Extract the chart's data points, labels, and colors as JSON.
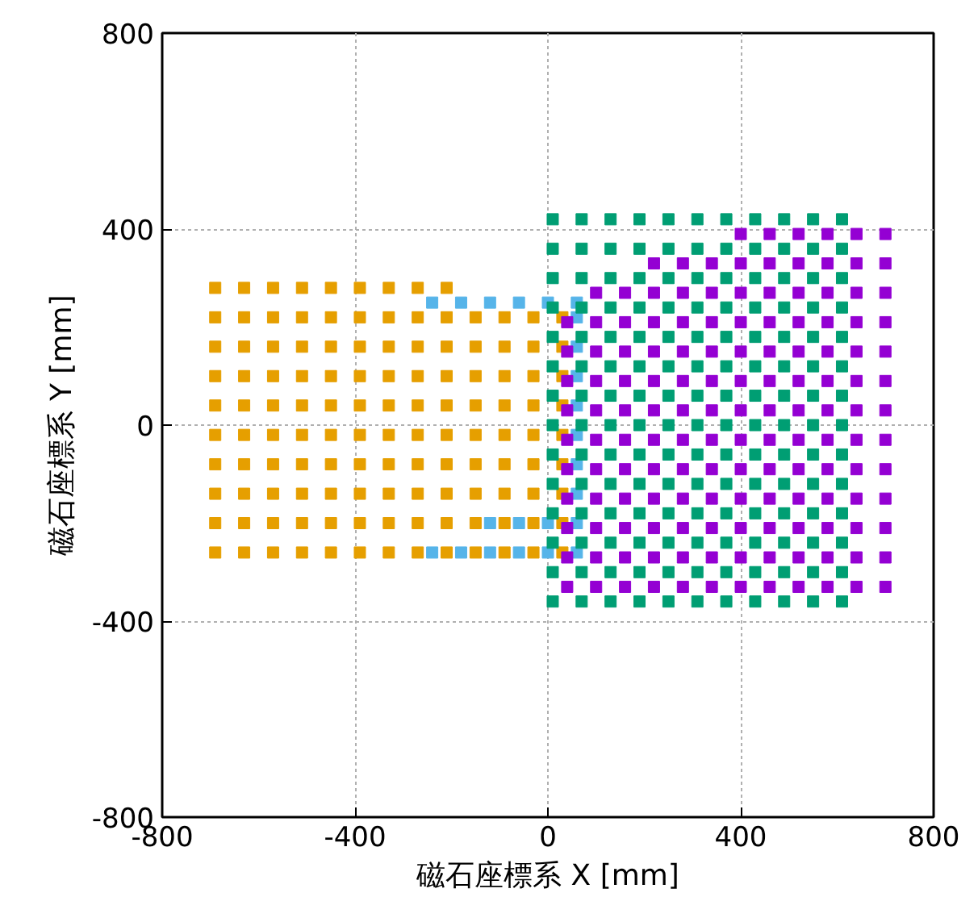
{
  "chart_data": {
    "type": "scatter",
    "xlabel": "磁石座標系 X [mm]",
    "ylabel": "磁石座標系 Y [mm]",
    "xlim": [
      -800,
      800
    ],
    "ylim": [
      -800,
      800
    ],
    "xticks": [
      -800,
      -400,
      0,
      400,
      800
    ],
    "yticks": [
      -800,
      -400,
      0,
      400,
      800
    ],
    "grid": true,
    "marker": "square",
    "series": [
      {
        "color": "#56b4e9",
        "x": [
          -240,
          -180,
          -120,
          -60,
          0,
          60,
          -120,
          -60,
          0,
          60,
          -240,
          -180,
          -120,
          -60,
          0,
          60,
          60,
          60,
          60,
          60,
          60,
          60,
          60
        ],
        "values": [
          250,
          250,
          250,
          250,
          250,
          250,
          -200,
          -200,
          -200,
          -200,
          -260,
          -260,
          -260,
          -260,
          -260,
          -260,
          -140,
          -80,
          -20,
          40,
          100,
          160,
          220
        ]
      },
      {
        "color": "#e69f00",
        "x": [
          -690,
          -630,
          -570,
          -510,
          -450,
          -390,
          -330,
          -270,
          -210,
          -150,
          -90,
          -30,
          30,
          -690,
          -630,
          -570,
          -510,
          -450,
          -390,
          -330,
          -270,
          -210,
          -150,
          -90,
          -30,
          30,
          -690,
          -630,
          -570,
          -510,
          -450,
          -390,
          -330,
          -270,
          -210,
          -150,
          -90,
          -30,
          30,
          -690,
          -630,
          -570,
          -510,
          -450,
          -390,
          -330,
          -270,
          -210,
          -150,
          -90,
          -30,
          30,
          -690,
          -630,
          -570,
          -510,
          -450,
          -390,
          -330,
          -270,
          -210,
          -150,
          -90,
          -30,
          30,
          -690,
          -630,
          -570,
          -510,
          -450,
          -390,
          -330,
          -270,
          -210,
          -150,
          -90,
          -30,
          30,
          -690,
          -630,
          -570,
          -510,
          -450,
          -390,
          -330,
          -270,
          -210,
          -150,
          -90,
          -30,
          30,
          -690,
          -630,
          -570,
          -510,
          -450,
          -390,
          -330,
          -270,
          -210,
          -150,
          -90,
          -30,
          30,
          -690,
          -630,
          -570,
          -510,
          -450,
          -390,
          -330,
          -270,
          -210,
          -150,
          -90,
          -30,
          30,
          -690,
          -630,
          -570,
          -510,
          -450,
          -390,
          -330,
          -270,
          -210
        ],
        "values": [
          -260,
          -260,
          -260,
          -260,
          -260,
          -260,
          -260,
          -260,
          -260,
          -260,
          -260,
          -260,
          -260,
          -200,
          -200,
          -200,
          -200,
          -200,
          -200,
          -200,
          -200,
          -200,
          -200,
          -200,
          -200,
          -200,
          -140,
          -140,
          -140,
          -140,
          -140,
          -140,
          -140,
          -140,
          -140,
          -140,
          -140,
          -140,
          -140,
          -80,
          -80,
          -80,
          -80,
          -80,
          -80,
          -80,
          -80,
          -80,
          -80,
          -80,
          -80,
          -80,
          -20,
          -20,
          -20,
          -20,
          -20,
          -20,
          -20,
          -20,
          -20,
          -20,
          -20,
          -20,
          -20,
          40,
          40,
          40,
          40,
          40,
          40,
          40,
          40,
          40,
          40,
          40,
          40,
          40,
          100,
          100,
          100,
          100,
          100,
          100,
          100,
          100,
          100,
          100,
          100,
          100,
          100,
          160,
          160,
          160,
          160,
          160,
          160,
          160,
          160,
          160,
          160,
          160,
          160,
          160,
          220,
          220,
          220,
          220,
          220,
          220,
          220,
          220,
          220,
          220,
          220,
          220,
          220,
          280,
          280,
          280,
          280,
          280,
          280,
          280,
          280,
          280
        ]
      },
      {
        "color": "#9400d3",
        "x": [
          400,
          460,
          520,
          580,
          640,
          700,
          220,
          280,
          340,
          400,
          460,
          520,
          580,
          640,
          700,
          100,
          160,
          220,
          280,
          340,
          400,
          460,
          520,
          580,
          640,
          700,
          40,
          100,
          160,
          220,
          280,
          340,
          400,
          460,
          520,
          580,
          640,
          700,
          40,
          100,
          160,
          220,
          280,
          340,
          400,
          460,
          520,
          580,
          640,
          700,
          40,
          100,
          160,
          220,
          280,
          340,
          400,
          460,
          520,
          580,
          640,
          700,
          40,
          100,
          160,
          220,
          280,
          340,
          400,
          460,
          520,
          580,
          640,
          700,
          40,
          100,
          160,
          220,
          280,
          340,
          400,
          460,
          520,
          580,
          640,
          700,
          40,
          100,
          160,
          220,
          280,
          340,
          400,
          460,
          520,
          580,
          640,
          700,
          40,
          100,
          160,
          220,
          280,
          340,
          400,
          460,
          520,
          580,
          640,
          700,
          40,
          100,
          160,
          220,
          280,
          340,
          400,
          460,
          520,
          580,
          640,
          700,
          40,
          100,
          160,
          220,
          280,
          340,
          400,
          460,
          520,
          580,
          640,
          700,
          40,
          100,
          160,
          220,
          280,
          340,
          400,
          460,
          520,
          580,
          640,
          700
        ],
        "values": [
          390,
          390,
          390,
          390,
          390,
          390,
          330,
          330,
          330,
          330,
          330,
          330,
          330,
          330,
          330,
          270,
          270,
          270,
          270,
          270,
          270,
          270,
          270,
          270,
          270,
          270,
          210,
          210,
          210,
          210,
          210,
          210,
          210,
          210,
          210,
          210,
          210,
          210,
          150,
          150,
          150,
          150,
          150,
          150,
          150,
          150,
          150,
          150,
          150,
          150,
          90,
          90,
          90,
          90,
          90,
          90,
          90,
          90,
          90,
          90,
          90,
          90,
          30,
          30,
          30,
          30,
          30,
          30,
          30,
          30,
          30,
          30,
          30,
          30,
          -30,
          -30,
          -30,
          -30,
          -30,
          -30,
          -30,
          -30,
          -30,
          -30,
          -30,
          -30,
          -90,
          -90,
          -90,
          -90,
          -90,
          -90,
          -90,
          -90,
          -90,
          -90,
          -90,
          -90,
          -150,
          -150,
          -150,
          -150,
          -150,
          -150,
          -150,
          -150,
          -150,
          -150,
          -150,
          -150,
          -210,
          -210,
          -210,
          -210,
          -210,
          -210,
          -210,
          -210,
          -210,
          -210,
          -210,
          -210,
          -270,
          -270,
          -270,
          -270,
          -270,
          -270,
          -270,
          -270,
          -270,
          -270,
          -270,
          -270,
          -330,
          -330,
          -330,
          -330,
          -330,
          -330,
          -330,
          -330,
          -330,
          -330,
          -330,
          -330
        ]
      },
      {
        "color": "#009e73",
        "x": [
          10,
          70,
          130,
          190,
          250,
          310,
          370,
          430,
          490,
          550,
          610,
          10,
          70,
          130,
          190,
          250,
          310,
          370,
          430,
          490,
          550,
          610,
          10,
          70,
          130,
          190,
          250,
          310,
          370,
          430,
          490,
          550,
          610,
          10,
          70,
          130,
          190,
          250,
          310,
          370,
          430,
          490,
          550,
          610,
          10,
          70,
          130,
          190,
          250,
          310,
          370,
          430,
          490,
          550,
          610,
          10,
          70,
          130,
          190,
          250,
          310,
          370,
          430,
          490,
          550,
          610,
          10,
          70,
          130,
          190,
          250,
          310,
          370,
          430,
          490,
          550,
          610,
          10,
          70,
          130,
          190,
          250,
          310,
          370,
          430,
          490,
          550,
          610,
          10,
          70,
          130,
          190,
          250,
          310,
          370,
          430,
          490,
          550,
          610,
          10,
          70,
          130,
          190,
          250,
          310,
          370,
          430,
          490,
          550,
          610,
          10,
          70,
          130,
          190,
          250,
          310,
          370,
          430,
          490,
          550,
          610,
          10,
          70,
          130,
          190,
          250,
          310,
          370,
          430,
          490,
          550,
          610,
          10,
          70,
          130,
          190,
          250,
          310,
          370,
          430,
          490,
          550,
          610,
          10,
          70,
          130,
          190,
          250,
          310,
          370,
          430,
          490,
          550,
          610
        ],
        "values": [
          -360,
          -360,
          -360,
          -360,
          -360,
          -360,
          -360,
          -360,
          -360,
          -360,
          -360,
          -300,
          -300,
          -300,
          -300,
          -300,
          -300,
          -300,
          -300,
          -300,
          -300,
          -300,
          -240,
          -240,
          -240,
          -240,
          -240,
          -240,
          -240,
          -240,
          -240,
          -240,
          -240,
          -180,
          -180,
          -180,
          -180,
          -180,
          -180,
          -180,
          -180,
          -180,
          -180,
          -180,
          -120,
          -120,
          -120,
          -120,
          -120,
          -120,
          -120,
          -120,
          -120,
          -120,
          -120,
          -60,
          -60,
          -60,
          -60,
          -60,
          -60,
          -60,
          -60,
          -60,
          -60,
          -60,
          0,
          0,
          0,
          0,
          0,
          0,
          0,
          0,
          0,
          0,
          0,
          60,
          60,
          60,
          60,
          60,
          60,
          60,
          60,
          60,
          60,
          60,
          120,
          120,
          120,
          120,
          120,
          120,
          120,
          120,
          120,
          120,
          120,
          180,
          180,
          180,
          180,
          180,
          180,
          180,
          180,
          180,
          180,
          180,
          240,
          240,
          240,
          240,
          240,
          240,
          240,
          240,
          240,
          240,
          240,
          300,
          300,
          300,
          300,
          300,
          300,
          300,
          300,
          300,
          300,
          300,
          360,
          360,
          360,
          360,
          360,
          360,
          360,
          360,
          360,
          360,
          360,
          420,
          420,
          420,
          420,
          420,
          420,
          420,
          420,
          420,
          420,
          420
        ]
      }
    ]
  }
}
